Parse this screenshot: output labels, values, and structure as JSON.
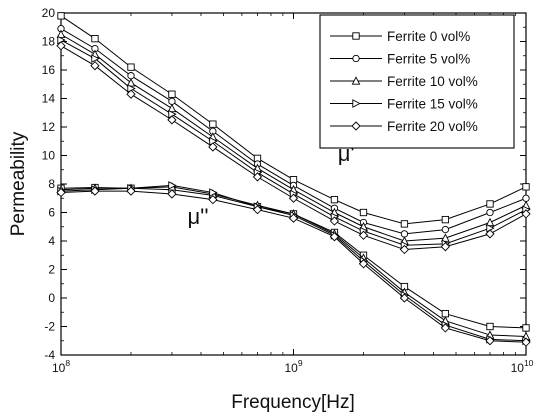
{
  "chart_data": {
    "type": "line",
    "title": "",
    "xlabel": "Frequency[Hz]",
    "ylabel": "Permeability",
    "x_scale": "log",
    "xlim": [
      100000000,
      10000000000
    ],
    "ylim": [
      -4,
      20
    ],
    "x_ticks": [
      {
        "value": 100000000,
        "base": "10",
        "exp": "8"
      },
      {
        "value": 1000000000,
        "base": "10",
        "exp": "9"
      },
      {
        "value": 10000000000,
        "base": "10",
        "exp": "10"
      }
    ],
    "y_ticks": [
      "-4",
      "-2",
      "0",
      "2",
      "4",
      "6",
      "8",
      "10",
      "12",
      "14",
      "16",
      "18",
      "20"
    ],
    "grid": false,
    "legend_position": "top-right",
    "x": [
      100000000,
      140000000,
      200000000,
      300000000,
      450000000,
      700000000,
      1000000000,
      1500000000,
      2000000000,
      3000000000,
      4500000000,
      7000000000,
      10000000000
    ],
    "series": [
      {
        "name": "Ferrite 0 vol%",
        "marker": "square",
        "mu_prime": [
          19.8,
          18.2,
          16.2,
          14.3,
          12.2,
          9.8,
          8.3,
          6.9,
          6.0,
          5.2,
          5.5,
          6.6,
          7.8
        ],
        "mu_double_prime": [
          7.7,
          7.75,
          7.7,
          7.6,
          7.2,
          6.4,
          5.9,
          4.6,
          3.0,
          0.8,
          -1.1,
          -2.0,
          -2.1
        ]
      },
      {
        "name": "Ferrite 5 vol%",
        "marker": "circle",
        "mu_prime": [
          18.9,
          17.5,
          15.6,
          13.8,
          11.7,
          9.4,
          7.9,
          6.3,
          5.3,
          4.5,
          4.8,
          6.0,
          7.0
        ]
      },
      {
        "name": "Ferrite 10 vol%",
        "marker": "triangle-up",
        "mu_prime": [
          18.5,
          17.1,
          15.1,
          13.3,
          11.3,
          9.1,
          7.6,
          6.0,
          5.0,
          4.0,
          4.2,
          5.3,
          6.5
        ],
        "mu_double_prime": [
          7.6,
          7.7,
          7.7,
          7.8,
          7.3,
          6.5,
          5.9,
          4.5,
          2.8,
          0.4,
          -1.6,
          -2.6,
          -2.7
        ]
      },
      {
        "name": "Ferrite 15 vol%",
        "marker": "triangle-right",
        "mu_prime": [
          18.1,
          16.8,
          14.7,
          12.9,
          11.0,
          8.8,
          7.3,
          5.7,
          4.7,
          3.7,
          3.8,
          4.9,
          6.2
        ],
        "mu_double_prime": [
          7.5,
          7.6,
          7.7,
          7.9,
          7.4,
          6.4,
          5.8,
          4.4,
          2.6,
          0.2,
          -1.9,
          -2.9,
          -3.0
        ]
      },
      {
        "name": "Ferrite 20 vol%",
        "marker": "diamond",
        "mu_prime": [
          17.7,
          16.3,
          14.3,
          12.5,
          10.6,
          8.5,
          7.0,
          5.4,
          4.4,
          3.4,
          3.6,
          4.5,
          5.9
        ],
        "mu_double_prime": [
          7.4,
          7.5,
          7.5,
          7.3,
          6.9,
          6.2,
          5.6,
          4.3,
          2.4,
          0.0,
          -2.1,
          -3.0,
          -3.1
        ]
      }
    ],
    "annotations": [
      {
        "text": "μ'",
        "x": 1550000000,
        "y": 9.6
      },
      {
        "text": "μ''",
        "x": 350000000,
        "y": 5.2
      }
    ]
  }
}
